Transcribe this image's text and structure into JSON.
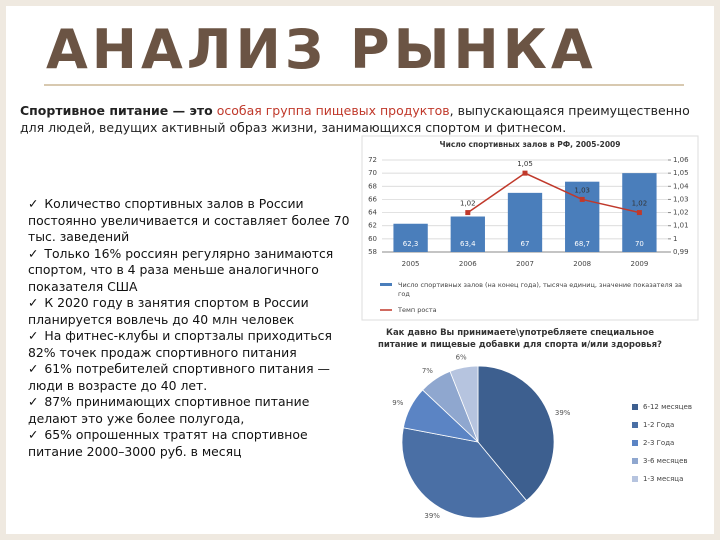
{
  "title": "АНАЛИЗ РЫНКА",
  "intro": [
    "Спортивное питание — это",
    "особая группа пищевых продуктов",
    ", выпускающаяся преимущественно для людей, ведущих активный образ жизни, занимающихся спортом и фитнесом."
  ],
  "bullets": [
    "Количество спортивных залов в России постоянно увеличивается и составляет более 70 тыс. заведений",
    "Только 16% россиян регулярно занимаются спортом, что в 4 раза меньше аналогичного показателя США",
    "К 2020 году в занятия спортом в России планируется вовлечь до 40 млн человек",
    "На фитнес-клубы и спортзалы приходиться 82% точек продаж спортивного питания",
    "61% потребителей спортивного питания — люди в возрасте до 40 лет.",
    "87% принимающих спортивное питание делают это уже более полугода,",
    "65% опрошенных тратят на спортивное питание 2000–3000 руб. в месяц"
  ],
  "chart_data": [
    {
      "type": "bar",
      "title": "Число спортивных залов в РФ, 2005-2009",
      "categories": [
        "2005",
        "2006",
        "2007",
        "2008",
        "2009"
      ],
      "series": [
        {
          "name": "Число спортивных залов (на конец года), тысяча единиц, значение показателя за год",
          "color": "#4a7ebb",
          "values": [
            62.3,
            63.4,
            67,
            68.7,
            70
          ],
          "value_labels": [
            "62,3",
            "63,4",
            "67",
            "68,7",
            "70"
          ]
        },
        {
          "name": "Темп роста",
          "color": "#c0392b",
          "axis": "y2",
          "type": "line",
          "values": [
            null,
            1.02,
            1.05,
            1.03,
            1.02
          ],
          "value_labels": [
            null,
            "1,02",
            "1,05",
            "1,03",
            "1,02"
          ]
        }
      ],
      "ylim": [
        58,
        72
      ],
      "yticks": [
        58,
        60,
        62,
        64,
        66,
        68,
        70,
        72
      ],
      "y2lim": [
        0.99,
        1.06
      ],
      "y2ticks": [
        {
          "value": 0.99,
          "label": "0,99"
        },
        1,
        {
          "value": 1.01,
          "label": "1,01"
        },
        {
          "value": 1.02,
          "label": "1,02"
        },
        {
          "value": 1.03,
          "label": "1,03"
        },
        {
          "value": 1.04,
          "label": "1,04"
        },
        {
          "value": 1.05,
          "label": "1,05"
        },
        {
          "value": 1.06,
          "label": "1,06"
        }
      ],
      "grid": true
    },
    {
      "type": "pie",
      "title": "Как давно Вы принимаете\\употребляете специальное питание и пищевые добавки для спорта и/или здоровья?",
      "categories": [
        "6-12 месяцев",
        "1-2 Года",
        "2-3 Года",
        "3-6 месяцев",
        "1-3 месяца"
      ],
      "values": [
        39,
        39,
        9,
        7,
        6
      ],
      "value_labels": [
        "39%",
        "39%",
        "9%",
        "7%",
        "6%"
      ],
      "colors": [
        "#3d5f8f",
        "#4a6fa5",
        "#5b84c4",
        "#8fa7cf",
        "#b6c4df"
      ]
    }
  ]
}
